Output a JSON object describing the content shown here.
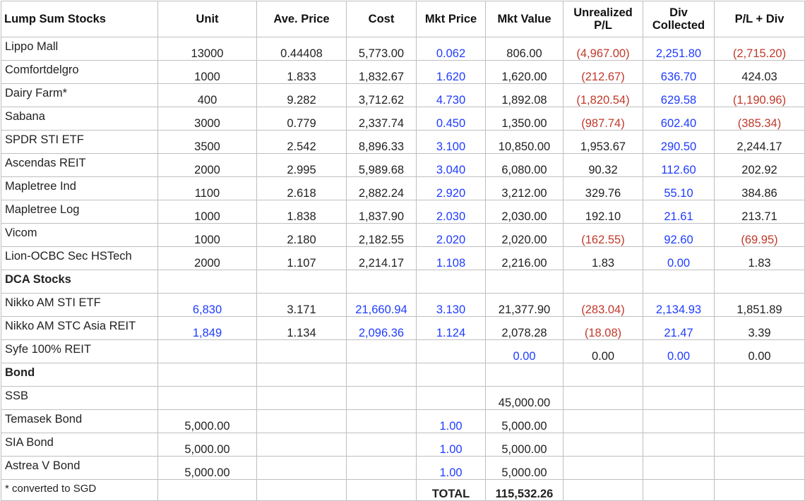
{
  "colors": {
    "positive_blue": "#1f3cff",
    "negative_red": "#c0392b",
    "grid": "#bfbfbf"
  },
  "headers": {
    "name": "Lump Sum Stocks",
    "unit": "Unit",
    "ave_price": "Ave. Price",
    "cost": "Cost",
    "mkt_price": "Mkt Price",
    "mkt_value": "Mkt Value",
    "unrealized_l1": "Unrealized",
    "unrealized_l2": "P/L",
    "div_l1": "Div",
    "div_l2": "Collected",
    "pl_div": "P/L + Div"
  },
  "lump_sum": [
    {
      "name": "Lippo Mall",
      "unit": "13000",
      "ave": "0.44408",
      "cost": "5,773.00",
      "mkt_price": "0.062",
      "mkt_value": "806.00",
      "pl": "(4,967.00)",
      "div": "2,251.80",
      "pl_div": "(2,715.20)",
      "pl_neg": true,
      "pld_neg": true
    },
    {
      "name": "Comfortdelgro",
      "unit": "1000",
      "ave": "1.833",
      "cost": "1,832.67",
      "mkt_price": "1.620",
      "mkt_value": "1,620.00",
      "pl": "(212.67)",
      "div": "636.70",
      "pl_div": "424.03",
      "pl_neg": true,
      "pld_neg": false
    },
    {
      "name": "Dairy Farm*",
      "unit": "400",
      "ave": "9.282",
      "cost": "3,712.62",
      "mkt_price": "4.730",
      "mkt_value": "1,892.08",
      "pl": "(1,820.54)",
      "div": "629.58",
      "pl_div": "(1,190.96)",
      "pl_neg": true,
      "pld_neg": true
    },
    {
      "name": "Sabana",
      "unit": "3000",
      "ave": "0.779",
      "cost": "2,337.74",
      "mkt_price": "0.450",
      "mkt_value": "1,350.00",
      "pl": "(987.74)",
      "div": "602.40",
      "pl_div": "(385.34)",
      "pl_neg": true,
      "pld_neg": true
    },
    {
      "name": "SPDR STI ETF",
      "unit": "3500",
      "ave": "2.542",
      "cost": "8,896.33",
      "mkt_price": "3.100",
      "mkt_value": "10,850.00",
      "pl": "1,953.67",
      "div": "290.50",
      "pl_div": "2,244.17",
      "pl_neg": false,
      "pld_neg": false
    },
    {
      "name": "Ascendas REIT",
      "unit": "2000",
      "ave": "2.995",
      "cost": "5,989.68",
      "mkt_price": "3.040",
      "mkt_value": "6,080.00",
      "pl": "90.32",
      "div": "112.60",
      "pl_div": "202.92",
      "pl_neg": false,
      "pld_neg": false
    },
    {
      "name": "Mapletree Ind",
      "unit": "1100",
      "ave": "2.618",
      "cost": "2,882.24",
      "mkt_price": "2.920",
      "mkt_value": "3,212.00",
      "pl": "329.76",
      "div": "55.10",
      "pl_div": "384.86",
      "pl_neg": false,
      "pld_neg": false
    },
    {
      "name": "Mapletree Log",
      "unit": "1000",
      "ave": "1.838",
      "cost": "1,837.90",
      "mkt_price": "2.030",
      "mkt_value": "2,030.00",
      "pl": "192.10",
      "div": "21.61",
      "pl_div": "213.71",
      "pl_neg": false,
      "pld_neg": false
    },
    {
      "name": "Vicom",
      "unit": "1000",
      "ave": "2.180",
      "cost": "2,182.55",
      "mkt_price": "2.020",
      "mkt_value": "2,020.00",
      "pl": "(162.55)",
      "div": "92.60",
      "pl_div": "(69.95)",
      "pl_neg": true,
      "pld_neg": true
    },
    {
      "name": "Lion-OCBC Sec HSTech",
      "unit": "2000",
      "ave": "1.107",
      "cost": "2,214.17",
      "mkt_price": "1.108",
      "mkt_value": "2,216.00",
      "pl": "1.83",
      "div": "0.00",
      "pl_div": "1.83",
      "pl_neg": false,
      "pld_neg": false
    }
  ],
  "dca_title": "DCA Stocks",
  "dca": [
    {
      "name": "Nikko AM STI ETF",
      "unit": "6,830",
      "ave": "3.171",
      "cost": "21,660.94",
      "mkt_price": "3.130",
      "mkt_value": "21,377.90",
      "pl": "(283.04)",
      "div": "2,134.93",
      "pl_div": "1,851.89",
      "pl_neg": true,
      "pld_neg": false
    },
    {
      "name": "Nikko AM STC Asia REIT",
      "unit": "1,849",
      "ave": "1.134",
      "cost": "2,096.36",
      "mkt_price": "1.124",
      "mkt_value": "2,078.28",
      "pl": "(18.08)",
      "div": "21.47",
      "pl_div": "3.39",
      "pl_neg": true,
      "pld_neg": false
    },
    {
      "name": "Syfe 100% REIT",
      "unit": "",
      "ave": "",
      "cost": "",
      "mkt_price": "",
      "mkt_value": "0.00",
      "pl": "0.00",
      "div": "0.00",
      "pl_div": "0.00",
      "pl_neg": false,
      "pld_neg": false
    }
  ],
  "bond_title": "Bond",
  "bonds": [
    {
      "name": "SSB",
      "unit": "",
      "mkt_price": "",
      "mkt_value": "45,000.00"
    },
    {
      "name": "Temasek Bond",
      "unit": "5,000.00",
      "mkt_price": "1.00",
      "mkt_value": "5,000.00"
    },
    {
      "name": "SIA Bond",
      "unit": "5,000.00",
      "mkt_price": "1.00",
      "mkt_value": "5,000.00"
    },
    {
      "name": "Astrea V Bond",
      "unit": "5,000.00",
      "mkt_price": "1.00",
      "mkt_value": "5,000.00"
    }
  ],
  "footer": {
    "note": "* converted to SGD",
    "total_label": "TOTAL",
    "total_value": "115,532.26"
  }
}
